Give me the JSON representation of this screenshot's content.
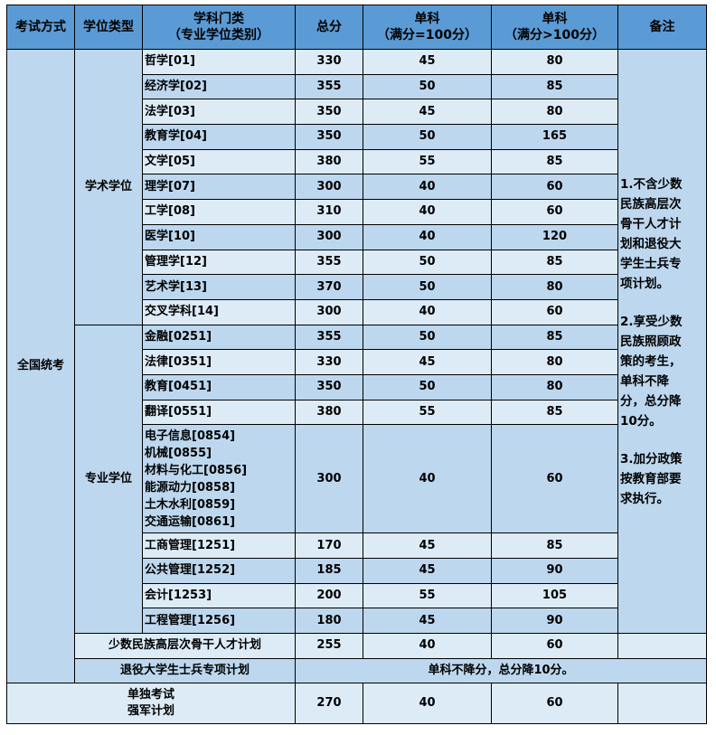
{
  "headers": [
    "考试方式",
    "学位类型",
    "学科门类\n（专业学位类别）",
    "总分",
    "单科\n（满分=100分）",
    "单科\n（满分>100分）",
    "备注"
  ],
  "header_lines": {
    "subject": [
      "学科门类",
      "（专业学位类别）"
    ],
    "single100": [
      "单科",
      "（满分=100分）"
    ],
    "single_over100": [
      "单科",
      "（满分>100分）"
    ]
  },
  "exam_mode": "全国统考",
  "academic": {
    "label": "学术学位",
    "rows": [
      {
        "subject": "哲学[01]",
        "total": "330",
        "s100": "45",
        "sover": "80"
      },
      {
        "subject": "经济学[02]",
        "total": "355",
        "s100": "50",
        "sover": "85"
      },
      {
        "subject": "法学[03]",
        "total": "350",
        "s100": "45",
        "sover": "80"
      },
      {
        "subject": "教育学[04]",
        "total": "350",
        "s100": "50",
        "sover": "165"
      },
      {
        "subject": "文学[05]",
        "total": "380",
        "s100": "55",
        "sover": "85"
      },
      {
        "subject": "理学[07]",
        "total": "300",
        "s100": "40",
        "sover": "60"
      },
      {
        "subject": "工学[08]",
        "total": "310",
        "s100": "40",
        "sover": "60"
      },
      {
        "subject": "医学[10]",
        "total": "300",
        "s100": "40",
        "sover": "120"
      },
      {
        "subject": "管理学[12]",
        "total": "355",
        "s100": "50",
        "sover": "85"
      },
      {
        "subject": "艺术学[13]",
        "total": "370",
        "s100": "50",
        "sover": "80"
      },
      {
        "subject": "交叉学科[14]",
        "total": "300",
        "s100": "40",
        "sover": "60"
      }
    ]
  },
  "professional": {
    "label": "专业学位",
    "rows_a": [
      {
        "subject": "金融[0251]",
        "total": "355",
        "s100": "50",
        "sover": "85"
      },
      {
        "subject": "法律[0351]",
        "total": "330",
        "s100": "45",
        "sover": "80"
      },
      {
        "subject": "教育[0451]",
        "total": "350",
        "s100": "50",
        "sover": "80"
      },
      {
        "subject": "翻译[0551]",
        "total": "380",
        "s100": "55",
        "sover": "85"
      }
    ],
    "group": {
      "subjects": [
        "电子信息[0854]",
        "机械[0855]",
        "材料与化工[0856]",
        "能源动力[0858]",
        "土木水利[0859]",
        "交通运输[0861]"
      ],
      "total": "300",
      "s100": "40",
      "sover": "60"
    },
    "rows_b": [
      {
        "subject": "工商管理[1251]",
        "total": "170",
        "s100": "45",
        "sover": "85"
      },
      {
        "subject": "公共管理[1252]",
        "total": "185",
        "s100": "45",
        "sover": "90"
      },
      {
        "subject": "会计[1253]",
        "total": "200",
        "s100": "55",
        "sover": "105"
      },
      {
        "subject": "工程管理[1256]",
        "total": "180",
        "s100": "45",
        "sover": "90"
      }
    ]
  },
  "minority": {
    "label": "少数民族高层次骨干人才计划",
    "total": "255",
    "s100": "40",
    "sover": "60"
  },
  "veteran": {
    "label": "退役大学生士兵专项计划",
    "note": "单科不降分，总分降10分。"
  },
  "separate": {
    "label_lines": [
      "单独考试",
      "强军计划"
    ],
    "total": "270",
    "s100": "40",
    "sover": "60"
  },
  "remarks": [
    [
      "1.不含少数",
      "民族高层次",
      "骨干人才计",
      "划和退役大",
      "学生士兵专",
      "项计划。"
    ],
    [
      "2.享受少数",
      "民族照顾政",
      "策的考生，",
      "单科不降",
      "分，总分降",
      "10分。"
    ],
    [
      "3.加分政策",
      "按教育部要",
      "求执行。"
    ]
  ],
  "colors": {
    "header": "#5b9bd5",
    "row_light": "#ddebf7",
    "row_dark": "#bdd7ee"
  }
}
